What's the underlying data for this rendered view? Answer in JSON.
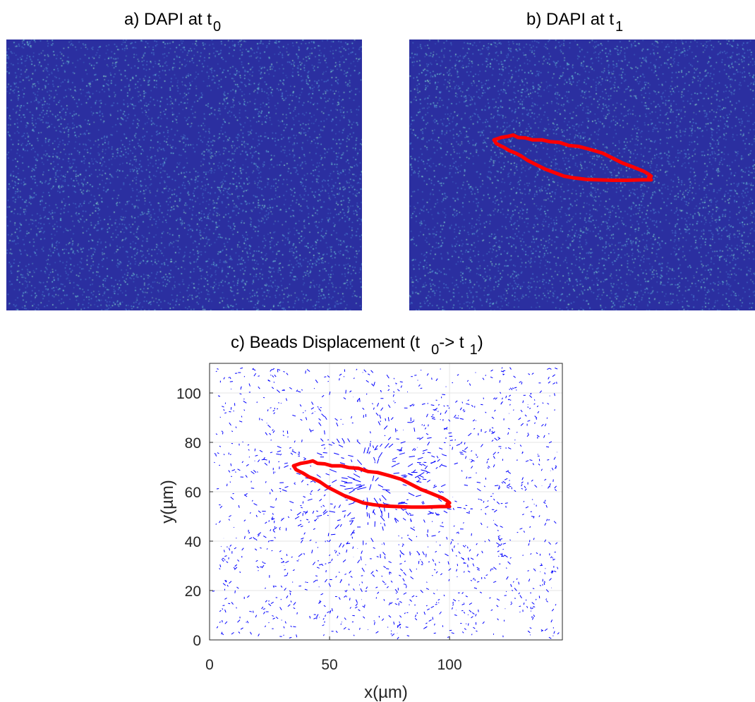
{
  "panels": {
    "a": {
      "title_main": "a) DAPI at t",
      "title_sub": "0"
    },
    "b": {
      "title_main": "b) DAPI at t",
      "title_sub": "1"
    },
    "c": {
      "title_part1": "c) Beads Displacement (t",
      "title_sub1": "0",
      "title_part2": "-> t",
      "title_sub2": "1",
      "title_part3": ")"
    }
  },
  "colors": {
    "image_background": "#2b2fa0",
    "bead_dots": "#6fd0d6",
    "cell_outline": "#ff0000",
    "vectors": "#0000ff"
  },
  "chart_data": {
    "type": "quiver",
    "xlabel": "x(µm)",
    "ylabel": "y(µm)",
    "xlim": [
      0,
      147
    ],
    "ylim": [
      0,
      112
    ],
    "xticks": [
      0,
      50,
      100
    ],
    "yticks": [
      0,
      20,
      40,
      60,
      80,
      100
    ],
    "grid": true,
    "cell_outline": [
      [
        35,
        70.5
      ],
      [
        38,
        71.5
      ],
      [
        41,
        72
      ],
      [
        43,
        72.5
      ],
      [
        45,
        71.5
      ],
      [
        48,
        71.3
      ],
      [
        51,
        70.5
      ],
      [
        55,
        70.5
      ],
      [
        58,
        69.8
      ],
      [
        62,
        69.5
      ],
      [
        66,
        68.2
      ],
      [
        70,
        67.8
      ],
      [
        75,
        66.5
      ],
      [
        80,
        65
      ],
      [
        84,
        63
      ],
      [
        88,
        61
      ],
      [
        92,
        59.5
      ],
      [
        97,
        57.5
      ],
      [
        99,
        56.3
      ],
      [
        100,
        55.5
      ],
      [
        99,
        55
      ],
      [
        100,
        54
      ],
      [
        96,
        54
      ],
      [
        90,
        53.8
      ],
      [
        84,
        53.8
      ],
      [
        78,
        54
      ],
      [
        73,
        54.2
      ],
      [
        68,
        54.8
      ],
      [
        64,
        55.5
      ],
      [
        60,
        57
      ],
      [
        56,
        58.5
      ],
      [
        52,
        60.5
      ],
      [
        49,
        62
      ],
      [
        46,
        64
      ],
      [
        44,
        65
      ],
      [
        41.5,
        66
      ],
      [
        39,
        67.5
      ],
      [
        37.5,
        68.2
      ],
      [
        36,
        69
      ],
      [
        35,
        70.5
      ]
    ]
  }
}
